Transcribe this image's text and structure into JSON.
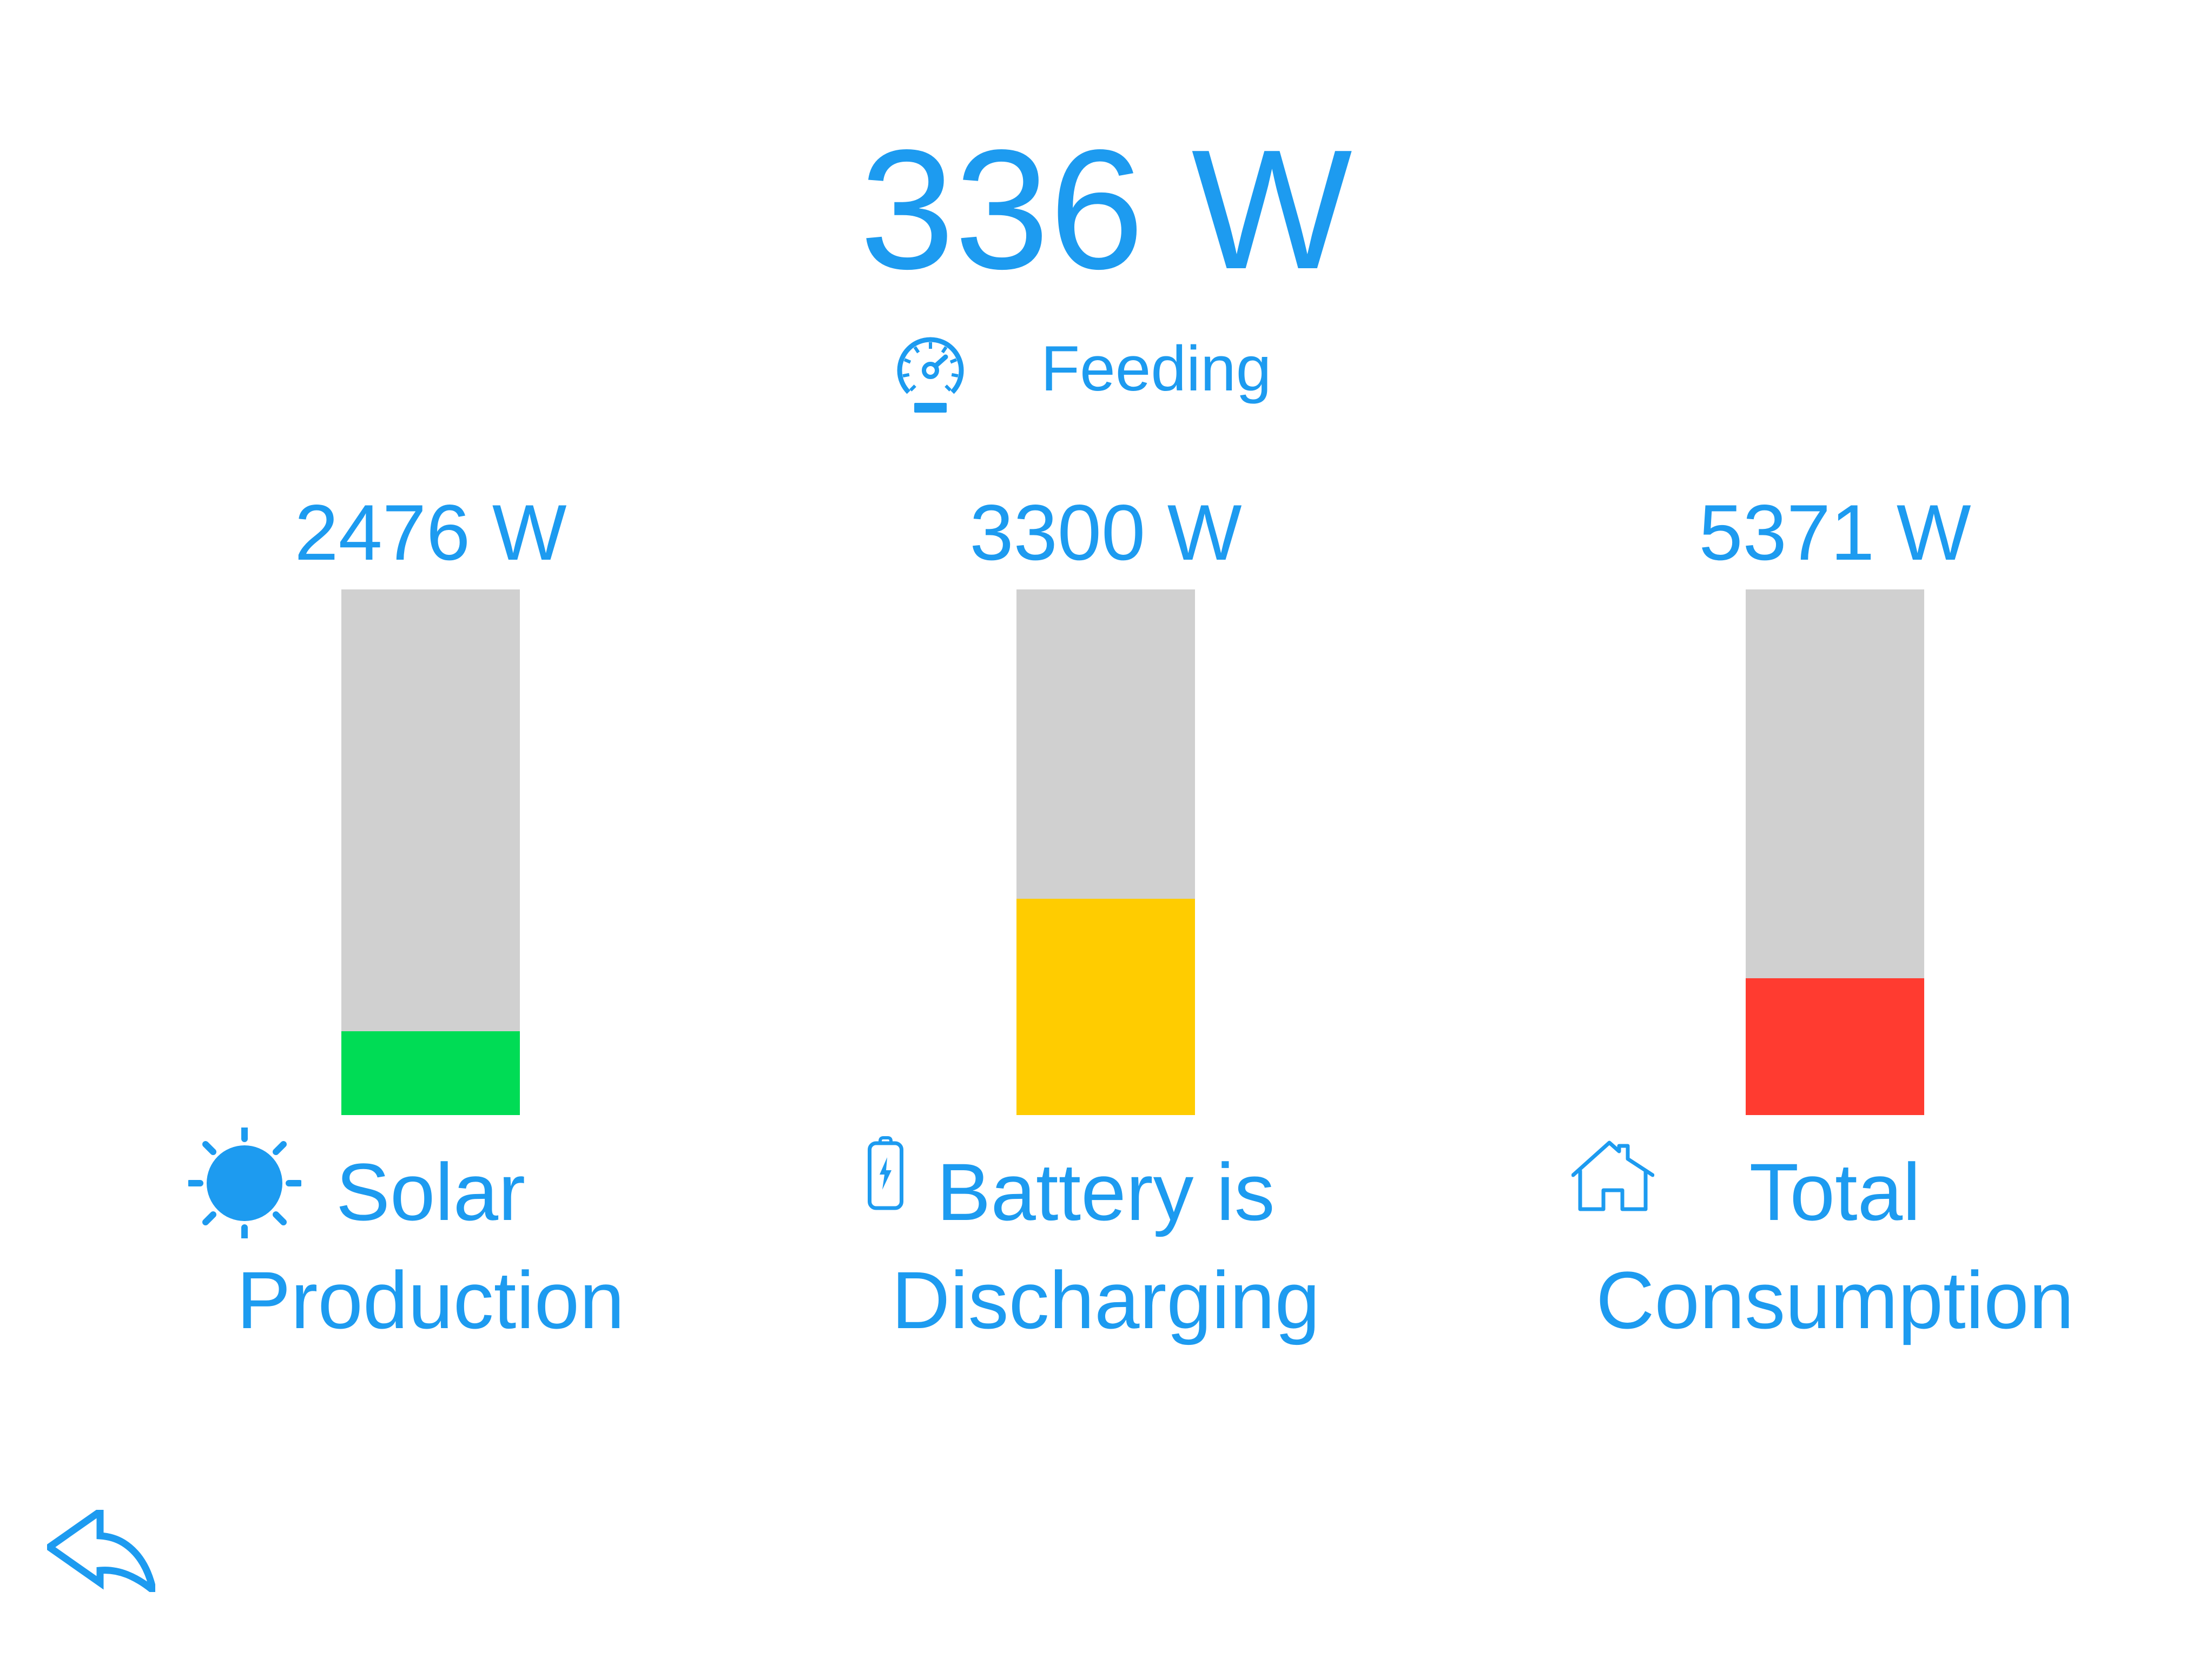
{
  "colors": {
    "accent": "#1D9BF0",
    "track": "#D0D0D0"
  },
  "header": {
    "power": "336 W",
    "power_value_w": 336,
    "status": "Feeding",
    "status_icon": "gauge-icon"
  },
  "gauges": [
    {
      "value": "2476 W",
      "value_w": 2476,
      "label_line1": "Solar",
      "label_line2": "Production",
      "icon": "sun-icon",
      "fill_color": "#00DC55",
      "fill_percent": 15.9
    },
    {
      "value": "3300 W",
      "value_w": 3300,
      "label_line1": "Battery is",
      "label_line2": "Discharging",
      "icon": "battery-icon",
      "fill_color": "#FFCC00",
      "fill_percent": 41.2
    },
    {
      "value": "5371 W",
      "value_w": 5371,
      "label_line1": "Total",
      "label_line2": "Consumption",
      "icon": "house-icon",
      "fill_color": "#FF3B30",
      "fill_percent": 26.0
    }
  ],
  "footer": {
    "back_icon": "back-arrow-icon"
  }
}
